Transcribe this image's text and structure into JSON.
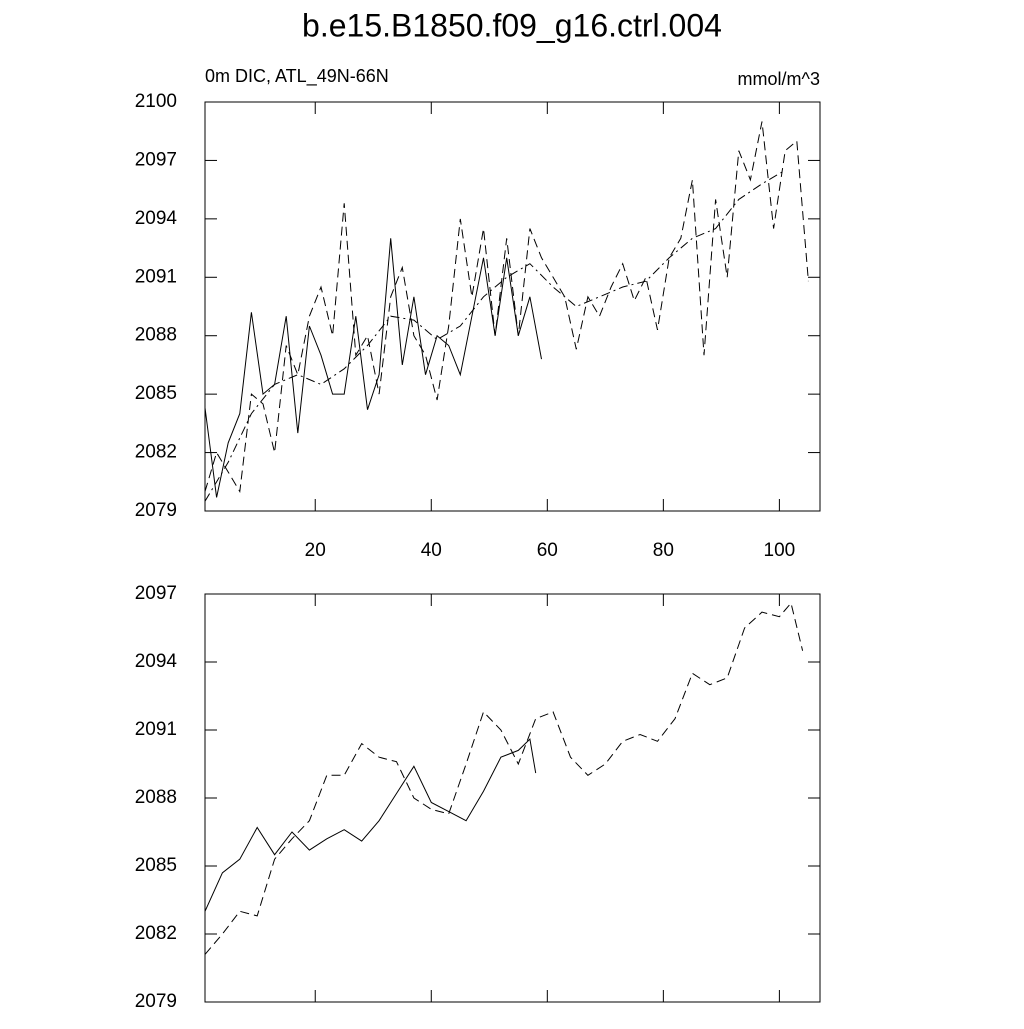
{
  "title": "b.e15.B1850.f09_g16.ctrl.004",
  "chart_data": [
    {
      "type": "line",
      "left_subtitle": "0m DIC, ATL_49N-66N",
      "right_subtitle": "mmol/m^3",
      "xlim": [
        1,
        107
      ],
      "xticks": [
        20,
        40,
        60,
        80,
        100
      ],
      "show_xtick_labels": true,
      "ylim": [
        2079,
        2100
      ],
      "yticks": [
        2079,
        2082,
        2085,
        2088,
        2091,
        2094,
        2097,
        2100
      ],
      "series": [
        {
          "color": "#000000",
          "line_style": "solid",
          "x": [
            1,
            3,
            5,
            7,
            9,
            11,
            13,
            15,
            17,
            19,
            21,
            23,
            25,
            27,
            29,
            31,
            33,
            35,
            37,
            39,
            41,
            43,
            45,
            47,
            49,
            51,
            53,
            55,
            57,
            59
          ],
          "values": [
            2084.3,
            2079.7,
            2082.5,
            2084.0,
            2089.2,
            2085.0,
            2085.5,
            2089.0,
            2083.0,
            2088.5,
            2087.0,
            2085.0,
            2085.0,
            2089.0,
            2084.2,
            2086.0,
            2093.0,
            2086.5,
            2090.0,
            2086.0,
            2088.0,
            2087.5,
            2086.0,
            2089.0,
            2092.0,
            2088.0,
            2092.0,
            2088.0,
            2090.0,
            2086.8
          ]
        },
        {
          "color": "#000000",
          "line_style": "dashed",
          "x": [
            1,
            3,
            5,
            7,
            9,
            11,
            13,
            15,
            17,
            19,
            21,
            23,
            25,
            27,
            29,
            31,
            33,
            35,
            37,
            39,
            41,
            43,
            45,
            47,
            49,
            51,
            53,
            55,
            57,
            59,
            61,
            63,
            65,
            67,
            69,
            71,
            73,
            75,
            77,
            79,
            81,
            83,
            85,
            87,
            89,
            91,
            93,
            95,
            97,
            99,
            101,
            103,
            105
          ],
          "values": [
            2080.0,
            2082.0,
            2081.0,
            2080.0,
            2085.0,
            2084.5,
            2082.0,
            2087.5,
            2086.0,
            2089.0,
            2090.5,
            2088.0,
            2094.8,
            2087.0,
            2088.0,
            2085.0,
            2090.0,
            2091.5,
            2088.0,
            2087.0,
            2084.7,
            2088.5,
            2094.0,
            2090.0,
            2093.5,
            2088.0,
            2093.0,
            2088.0,
            2093.5,
            2092.0,
            2091.0,
            2090.0,
            2087.3,
            2090.0,
            2089.0,
            2090.5,
            2091.7,
            2089.8,
            2091.0,
            2088.3,
            2092.0,
            2093.0,
            2096.0,
            2087.0,
            2095.0,
            2091.0,
            2097.5,
            2096.0,
            2099.0,
            2093.5,
            2097.5,
            2098.0,
            2090.8
          ]
        },
        {
          "color": "#000000",
          "line_style": "dashdot",
          "x": [
            1,
            5,
            9,
            13,
            17,
            21,
            25,
            29,
            33,
            37,
            41,
            45,
            49,
            53,
            57,
            61,
            65,
            69,
            73,
            77,
            81,
            85,
            89,
            93,
            97,
            101
          ],
          "values": [
            2079.5,
            2081.5,
            2084.0,
            2085.5,
            2086.0,
            2085.5,
            2086.3,
            2087.5,
            2089.0,
            2088.8,
            2087.8,
            2088.5,
            2090.0,
            2091.0,
            2091.7,
            2090.5,
            2089.5,
            2090.0,
            2090.5,
            2090.8,
            2092.0,
            2093.0,
            2093.5,
            2095.0,
            2095.8,
            2096.5
          ]
        }
      ]
    },
    {
      "type": "line",
      "xlim": [
        1,
        107
      ],
      "xticks": [
        20,
        40,
        60,
        80,
        100
      ],
      "show_xtick_labels": false,
      "ylim": [
        2079,
        2097
      ],
      "yticks": [
        2079,
        2082,
        2085,
        2088,
        2091,
        2094,
        2097
      ],
      "series": [
        {
          "color": "#000000",
          "line_style": "solid",
          "x": [
            1,
            4,
            7,
            10,
            13,
            16,
            19,
            22,
            25,
            28,
            31,
            34,
            37,
            40,
            43,
            46,
            49,
            52,
            55,
            57,
            58
          ],
          "values": [
            2083.0,
            2084.7,
            2085.3,
            2086.7,
            2085.5,
            2086.5,
            2085.7,
            2086.2,
            2086.6,
            2086.1,
            2087.0,
            2088.2,
            2089.4,
            2087.8,
            2087.4,
            2087.0,
            2088.3,
            2089.8,
            2090.1,
            2090.6,
            2089.1
          ]
        },
        {
          "color": "#000000",
          "line_style": "dashed",
          "x": [
            1,
            4,
            7,
            10,
            13,
            16,
            19,
            22,
            25,
            28,
            31,
            34,
            37,
            40,
            43,
            46,
            49,
            52,
            55,
            58,
            61,
            64,
            67,
            70,
            73,
            76,
            79,
            82,
            85,
            88,
            91,
            94,
            97,
            100,
            102,
            104
          ],
          "values": [
            2081.1,
            2082.0,
            2083.0,
            2082.8,
            2085.3,
            2086.2,
            2087.0,
            2089.0,
            2089.0,
            2090.4,
            2089.8,
            2089.6,
            2088.0,
            2087.5,
            2087.3,
            2089.5,
            2091.8,
            2091.0,
            2089.5,
            2091.5,
            2091.8,
            2089.8,
            2089.0,
            2089.5,
            2090.5,
            2090.8,
            2090.5,
            2091.5,
            2093.5,
            2093.0,
            2093.3,
            2095.5,
            2096.2,
            2096.0,
            2096.6,
            2094.5
          ]
        }
      ]
    }
  ]
}
